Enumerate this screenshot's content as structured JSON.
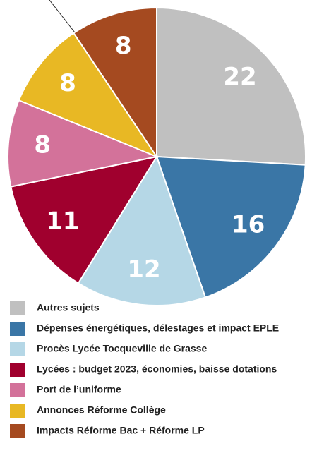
{
  "chart_data": {
    "type": "pie",
    "categories": [
      "Autres sujets",
      "Dépenses énergétiques, délestages et impact EPLE",
      "Procès Lycée Tocqueville de Grasse",
      "Lycées : budget 2023, économies, baisse dotations",
      "Port de l’uniforme",
      "Annonces Réforme Collège",
      "Impacts Réforme Bac + Réforme LP"
    ],
    "values": [
      22,
      16,
      12,
      11,
      8,
      8,
      8
    ],
    "colors": [
      "#c0c0c0",
      "#3a76a6",
      "#b5d7e6",
      "#a0002e",
      "#d3729a",
      "#e8b824",
      "#a54a20"
    ]
  }
}
